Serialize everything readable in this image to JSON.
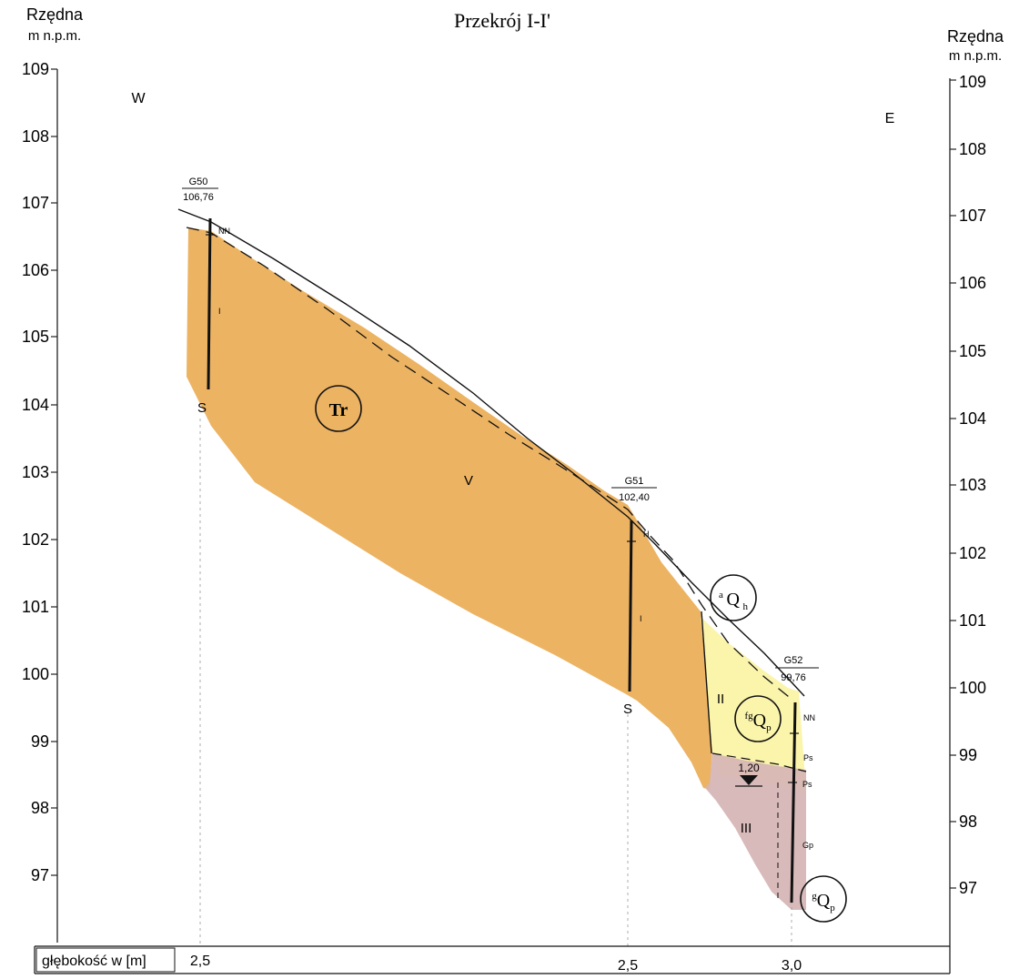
{
  "title": "Przekrój I-I'",
  "axis": {
    "label_left_line1": "Rzędna",
    "label_left_line2": "m n.p.m.",
    "label_right_line1": "Rzędna",
    "label_right_line2": "m n.p.m.",
    "ticks": [
      "109",
      "108",
      "107",
      "106",
      "105",
      "104",
      "103",
      "102",
      "101",
      "100",
      "99",
      "98",
      "97"
    ]
  },
  "directions": {
    "west": "W",
    "east": "E"
  },
  "boreholes": [
    {
      "id": "G50",
      "elevation": "106,76",
      "depth": "2,5",
      "top_code": "NN",
      "layer_code": "I",
      "bottom_code": "S"
    },
    {
      "id": "G51",
      "elevation": "102,40",
      "depth": "2,5",
      "top_code": "H",
      "layer_code": "I",
      "bottom_code": "S"
    },
    {
      "id": "G52",
      "elevation": "99,76",
      "depth": "3,0",
      "top_code": "NN",
      "code_1": "Ps",
      "code_2": "Ps",
      "code_3": "Gp"
    }
  ],
  "formations": {
    "tr": "Tr",
    "ah": "aQh",
    "fgqp": "fgQp",
    "gqp": "gQp"
  },
  "layers": {
    "v": "V",
    "ii": "II",
    "iii": "III"
  },
  "water_level": "1,20",
  "footer": {
    "depth_label": "głębokość w [m]"
  },
  "colors": {
    "sandstone": "#ebad57",
    "fluvioglacial": "#fbf4ab",
    "till": "#d6b4b4",
    "line": "#111111"
  }
}
